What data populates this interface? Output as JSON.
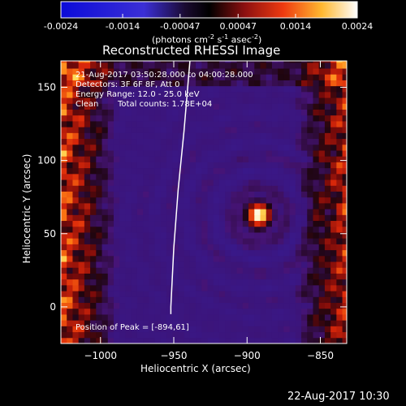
{
  "colorbar": {
    "tick_labels": [
      "-0.0024",
      "-0.0014",
      "-0.00047",
      "0.00047",
      "0.0014",
      "0.0024"
    ],
    "tick_values": [
      -0.0024,
      -0.0014,
      -0.00047,
      0.00047,
      0.0014,
      0.0024
    ],
    "range": [
      -0.0024,
      0.0024
    ],
    "units": {
      "prefix": "(photons cm",
      "exp1": "-2",
      "mid": " s",
      "exp2": "-1",
      "mid2": " asec",
      "exp3": "-2",
      "suffix": ")"
    }
  },
  "annotations": {
    "time_range": "21-Aug-2017 03:50:28.000 to 04:00:28.000",
    "detectors": "Detectors: 3F 6F 8F, Att 0",
    "energy": "Energy Range: 12.0 - 25.0 keV",
    "method": "Clean",
    "counts": "Total counts: 1.78E+04",
    "peak": "Position of Peak = [-894,61]"
  },
  "footer": {
    "timestamp": "22-Aug-2017 10:30"
  },
  "chart_data": {
    "type": "heatmap",
    "title": "Reconstructed RHESSI Image",
    "xlabel": "Heliocentric X (arcsec)",
    "ylabel": "Heliocentric Y (arcsec)",
    "xlim": [
      -1027,
      -832
    ],
    "ylim": [
      -25,
      168
    ],
    "x_ticks": [
      -1000,
      -950,
      -900,
      -850
    ],
    "y_ticks": [
      0,
      50,
      100,
      150
    ],
    "x_tick_labels": [
      "−1000",
      "−950",
      "−900",
      "−850"
    ],
    "y_tick_labels": [
      "0",
      "50",
      "100",
      "150"
    ],
    "colormap": "red-temperature with blue negatives",
    "color_range": [
      -0.0024,
      0.0024
    ],
    "peak": [
      -894,
      61
    ],
    "limb_curve": [
      [
        -939,
        168
      ],
      [
        -943,
        120
      ],
      [
        -947,
        80
      ],
      [
        -950,
        40
      ],
      [
        -952,
        0
      ],
      [
        -952,
        -5
      ]
    ]
  }
}
